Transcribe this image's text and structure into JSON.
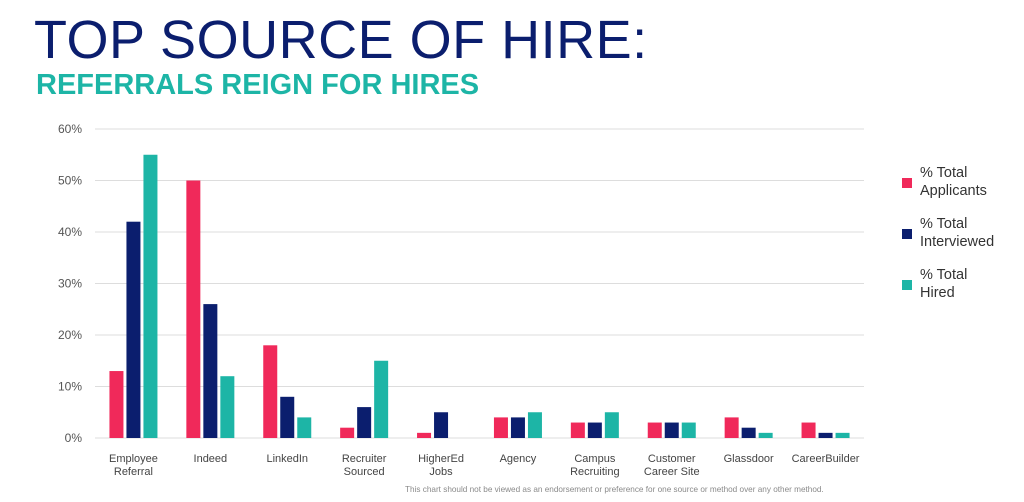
{
  "header": {
    "title": "TOP SOURCE OF HIRE:",
    "subtitle": "REFERRALS REIGN FOR HIRES"
  },
  "footnote": "This chart should not be viewed as an endorsement or preference for one source or method over any other method.",
  "colors": {
    "applicants": "#f0295a",
    "interviewed": "#0b1e6e",
    "hired": "#1db5a6",
    "title": "#0b1e6e",
    "subtitle": "#1db5a6",
    "grid": "#dddddd"
  },
  "chart_data": {
    "type": "bar",
    "categories": [
      "Employee Referral",
      "Indeed",
      "LinkedIn",
      "Recruiter Sourced",
      "HigherEd Jobs",
      "Agency",
      "Campus Recruiting",
      "Customer Career Site",
      "Glassdoor",
      "CareerBuilder"
    ],
    "category_label_lines": [
      [
        "Employee",
        "Referral"
      ],
      [
        "Indeed"
      ],
      [
        "LinkedIn"
      ],
      [
        "Recruiter",
        "Sourced"
      ],
      [
        "HigherEd",
        "Jobs"
      ],
      [
        "Agency"
      ],
      [
        "Campus",
        "Recruiting"
      ],
      [
        "Customer",
        "Career Site"
      ],
      [
        "Glassdoor"
      ],
      [
        "CareerBuilder"
      ]
    ],
    "series": [
      {
        "name": "% Total Applicants",
        "legend_lines": [
          "% Total",
          "Applicants"
        ],
        "color_key": "applicants",
        "values": [
          13,
          50,
          18,
          2,
          1,
          4,
          3,
          3,
          4,
          3
        ]
      },
      {
        "name": "% Total Interviewed",
        "legend_lines": [
          "% Total",
          "Interviewed"
        ],
        "color_key": "interviewed",
        "values": [
          42,
          26,
          8,
          6,
          5,
          4,
          3,
          3,
          2,
          1
        ]
      },
      {
        "name": "% Total Hired",
        "legend_lines": [
          "% Total",
          "Hired"
        ],
        "color_key": "hired",
        "values": [
          55,
          12,
          4,
          15,
          0,
          5,
          5,
          3,
          1,
          1
        ]
      }
    ],
    "y_ticks": [
      "0%",
      "10%",
      "20%",
      "30%",
      "40%",
      "50%",
      "60%"
    ],
    "ylim": [
      0,
      60
    ],
    "grid": true,
    "legend_position": "right"
  }
}
